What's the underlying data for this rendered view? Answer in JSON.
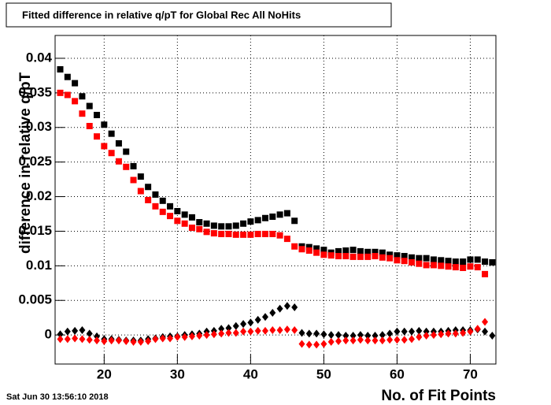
{
  "chart_data": {
    "type": "scatter",
    "title": "Fitted difference in relative q/pT  for Global Rec All NoHits",
    "x_label": "No. of Fit Points",
    "y_label": "difference in relative q/pT",
    "timestamp": "Sat Jun 30 13:56:10 2018",
    "xlim": [
      13.3,
      73.5
    ],
    "ylim": [
      -0.0042,
      0.0433
    ],
    "xticks": [
      20,
      30,
      40,
      50,
      60,
      70
    ],
    "yticks": [
      0,
      0.005,
      0.01,
      0.015,
      0.02,
      0.025,
      0.03,
      0.035,
      0.04
    ],
    "grid": true,
    "x": [
      14,
      15,
      16,
      17,
      18,
      19,
      20,
      21,
      22,
      23,
      24,
      25,
      26,
      27,
      28,
      29,
      30,
      31,
      32,
      33,
      34,
      35,
      36,
      37,
      38,
      39,
      40,
      41,
      42,
      43,
      44,
      45,
      46,
      47,
      48,
      49,
      50,
      51,
      52,
      53,
      54,
      55,
      56,
      57,
      58,
      59,
      60,
      61,
      62,
      63,
      64,
      65,
      66,
      67,
      68,
      69,
      70,
      71,
      72,
      73
    ],
    "series": [
      {
        "color": "#000000",
        "marker": "square",
        "values": [
          0.0384,
          0.0373,
          0.0364,
          0.0345,
          0.0331,
          0.0318,
          0.0304,
          0.0291,
          0.0277,
          0.0265,
          0.0244,
          0.0229,
          0.0214,
          0.0203,
          0.0194,
          0.0186,
          0.0179,
          0.0174,
          0.017,
          0.0163,
          0.0161,
          0.0158,
          0.0157,
          0.0157,
          0.0158,
          0.0161,
          0.0164,
          0.0166,
          0.0169,
          0.0171,
          0.0174,
          0.0176,
          0.0165,
          0.0128,
          0.0127,
          0.0125,
          0.0123,
          0.0119,
          0.0121,
          0.0122,
          0.0123,
          0.0121,
          0.012,
          0.012,
          0.0119,
          0.0116,
          0.0115,
          0.0114,
          0.0112,
          0.0111,
          0.0111,
          0.0109,
          0.0108,
          0.0107,
          0.0106,
          0.0106,
          0.0109,
          0.0109,
          0.0106,
          0.0105
        ]
      },
      {
        "color": "#ff0000",
        "marker": "square",
        "values": [
          0.035,
          0.0347,
          0.0338,
          0.032,
          0.0302,
          0.0287,
          0.0273,
          0.0263,
          0.0251,
          0.0243,
          0.0224,
          0.0208,
          0.0195,
          0.0186,
          0.0178,
          0.0172,
          0.0165,
          0.0161,
          0.0155,
          0.0153,
          0.0149,
          0.0147,
          0.0146,
          0.0146,
          0.0145,
          0.0145,
          0.0145,
          0.0146,
          0.0146,
          0.0146,
          0.0144,
          0.0139,
          0.0128,
          0.0124,
          0.0122,
          0.0119,
          0.0116,
          0.0115,
          0.0114,
          0.0114,
          0.0113,
          0.0113,
          0.0113,
          0.0114,
          0.0112,
          0.0111,
          0.0108,
          0.0107,
          0.0105,
          0.0103,
          0.0101,
          0.0101,
          0.01,
          0.0099,
          0.0098,
          0.0097,
          0.0099,
          0.0098,
          0.0088,
          null
        ]
      },
      {
        "color": "#000000",
        "marker": "diamond",
        "values": [
          0.0001,
          0.0005,
          0.0006,
          0.0007,
          0.0002,
          -0.0002,
          -0.0006,
          -0.0006,
          -0.0007,
          -0.0008,
          -0.0008,
          -0.0008,
          -0.0006,
          -0.0005,
          -0.0003,
          -0.0002,
          -0.0002,
          0.0,
          0.0001,
          0.0002,
          0.0005,
          0.0006,
          0.0009,
          0.001,
          0.0013,
          0.0016,
          0.0018,
          0.0022,
          0.0026,
          0.0032,
          0.0038,
          0.0042,
          0.004,
          0.0003,
          0.0002,
          0.0002,
          0.0001,
          0.0,
          0.0,
          -0.0001,
          -0.0001,
          0.0,
          -0.0001,
          -0.0001,
          0.0,
          0.0002,
          0.0005,
          0.0005,
          0.0005,
          0.0006,
          0.0005,
          0.0005,
          0.0005,
          0.0006,
          0.0007,
          0.0007,
          0.0007,
          0.0008,
          0.0005,
          -0.0001
        ]
      },
      {
        "color": "#ff0000",
        "marker": "diamond",
        "values": [
          -0.0006,
          -0.0006,
          -0.0005,
          -0.0006,
          -0.0007,
          -0.0008,
          -0.0009,
          -0.0008,
          -0.0008,
          -0.0009,
          -0.001,
          -0.001,
          -0.0009,
          -0.0006,
          -0.0005,
          -0.0005,
          -0.0003,
          -0.0003,
          -0.0002,
          -0.0001,
          0.0,
          0.0001,
          0.0002,
          0.0003,
          0.0003,
          0.0005,
          0.0005,
          0.0006,
          0.0006,
          0.0007,
          0.0007,
          0.0008,
          0.0007,
          -0.0013,
          -0.0014,
          -0.0014,
          -0.0013,
          -0.001,
          -0.0009,
          -0.0008,
          -0.0008,
          -0.0007,
          -0.0008,
          -0.0008,
          -0.0008,
          -0.0007,
          -0.0007,
          -0.0007,
          -0.0006,
          -0.0003,
          -0.0001,
          0.0,
          0.0001,
          0.0002,
          0.0002,
          0.0003,
          0.0005,
          0.0009,
          0.0019,
          null
        ]
      }
    ]
  }
}
